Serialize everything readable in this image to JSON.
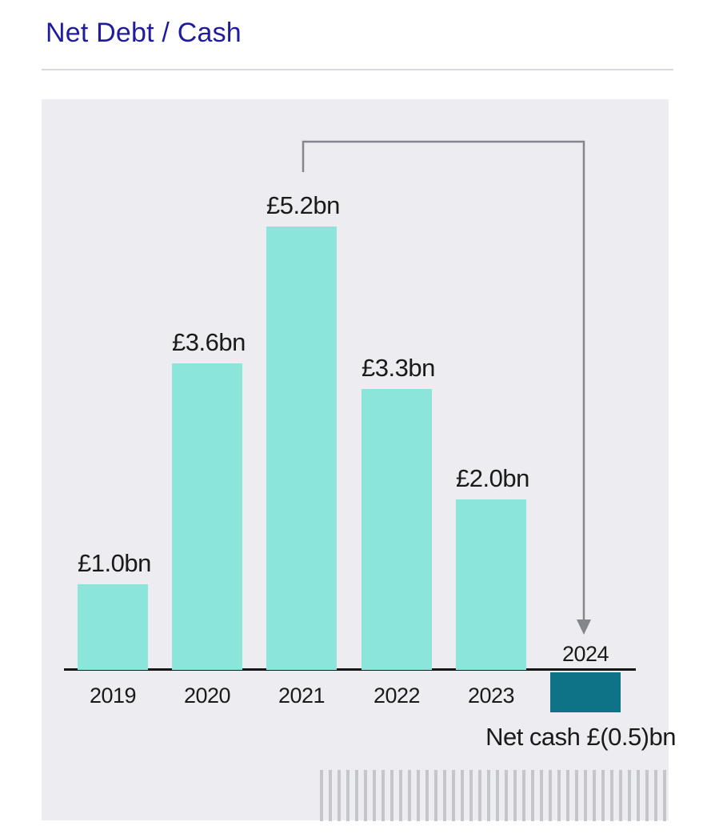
{
  "page": {
    "title": "Net Debt / Cash"
  },
  "colors": {
    "title_blue": "#211C9E",
    "panel_background": "#ECECF1",
    "axis_black": "#161616",
    "arrow_gray": "#85858D",
    "stripe_gray": "#C5C5CC"
  },
  "chart_data": {
    "type": "bar",
    "title": "Net Debt / Cash",
    "categories": [
      "2019",
      "2020",
      "2021",
      "2022",
      "2023",
      "2024"
    ],
    "values": [
      1.0,
      3.6,
      5.2,
      3.3,
      2.0,
      -0.5
    ],
    "bar_labels": [
      "£1.0bn",
      "£3.6bn",
      "£5.2bn",
      "£3.3bn",
      "£2.0bn",
      ""
    ],
    "unit": "£bn",
    "annotation": "Net cash £(0.5)bn",
    "arrow": {
      "from": "2021",
      "to": "2024"
    },
    "positive_bar_color": "#8BE5DB",
    "negative_bar_color": "#0E7386",
    "xlabel": "",
    "ylabel": "",
    "ylim": [
      -0.5,
      5.2
    ],
    "grid": false,
    "legend": "none"
  }
}
